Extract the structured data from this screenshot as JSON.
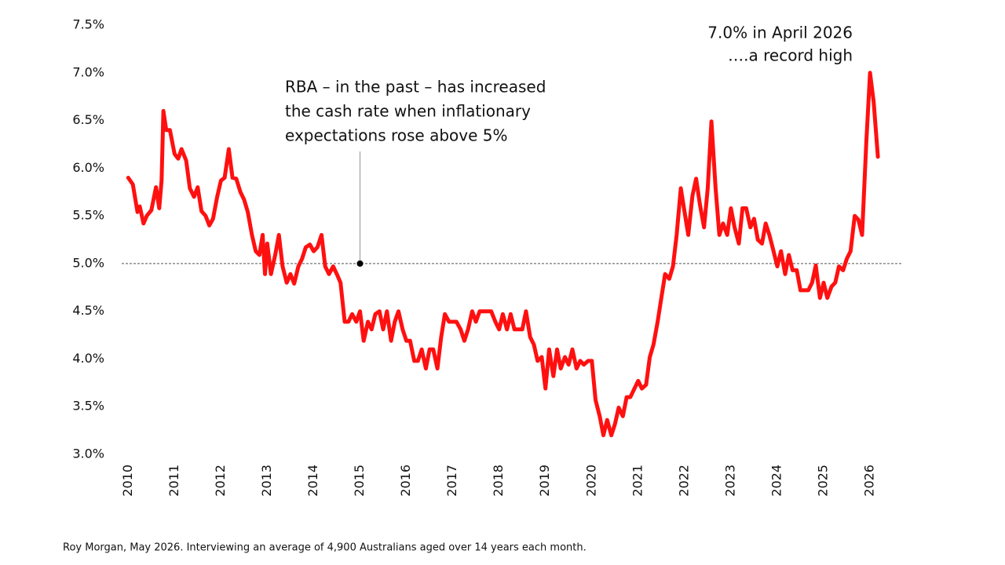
{
  "chart_data": {
    "type": "line",
    "annotation_text": [
      "RBA – in the past – has increased",
      "the cash rate when inflationary",
      "expectations rose above 5%"
    ],
    "annotation_point": {
      "x": 2015,
      "y": 5
    },
    "record_label": "7.0% in April 2026",
    "record_note": "….a record high",
    "source": "Roy Morgan, May 2026.  Interviewing an average of 4,900 Australians aged over 14 years each month.",
    "xlim": [
      2009.86,
      2026.71
    ],
    "xticks": [
      2010,
      2011,
      2012,
      2013,
      2014,
      2015,
      2016,
      2017,
      2018,
      2019,
      2020,
      2021,
      2022,
      2023,
      2024,
      2025,
      2026
    ],
    "ylim": [
      3.0,
      7.5
    ],
    "yticks": [
      {
        "value": 3.0,
        "label": "3.0%"
      },
      {
        "value": 3.5,
        "label": "3.5%"
      },
      {
        "value": 4.0,
        "label": "4.0%"
      },
      {
        "value": 4.5,
        "label": "4.5%"
      },
      {
        "value": 5.0,
        "label": "5.0%"
      },
      {
        "value": 5.5,
        "label": "5.5%"
      },
      {
        "value": 6.0,
        "label": "6.0%"
      },
      {
        "value": 6.5,
        "label": "6.5%"
      },
      {
        "value": 7.0,
        "label": "7.0%"
      },
      {
        "value": 7.5,
        "label": "7.5%"
      }
    ],
    "reference_line": 5,
    "color": "#ff1010",
    "x": [
      2010.0,
      2010.1,
      2010.2,
      2010.25,
      2010.33,
      2010.4,
      2010.5,
      2010.6,
      2010.67,
      2010.72,
      2010.76,
      2010.82,
      2010.9,
      2011.0,
      2011.08,
      2011.15,
      2011.25,
      2011.33,
      2011.42,
      2011.5,
      2011.58,
      2011.67,
      2011.75,
      2011.83,
      2011.92,
      2012.0,
      2012.08,
      2012.17,
      2012.25,
      2012.33,
      2012.42,
      2012.5,
      2012.58,
      2012.67,
      2012.75,
      2012.83,
      2012.9,
      2012.95,
      2013.0,
      2013.08,
      2013.17,
      2013.25,
      2013.33,
      2013.42,
      2013.5,
      2013.58,
      2013.67,
      2013.75,
      2013.83,
      2013.92,
      2014.0,
      2014.08,
      2014.17,
      2014.25,
      2014.33,
      2014.42,
      2014.5,
      2014.58,
      2014.67,
      2014.75,
      2014.83,
      2014.92,
      2015.0,
      2015.08,
      2015.17,
      2015.25,
      2015.33,
      2015.42,
      2015.5,
      2015.58,
      2015.67,
      2015.75,
      2015.83,
      2015.92,
      2016.0,
      2016.08,
      2016.17,
      2016.25,
      2016.33,
      2016.42,
      2016.5,
      2016.58,
      2016.67,
      2016.75,
      2016.83,
      2016.92,
      2017.0,
      2017.08,
      2017.17,
      2017.25,
      2017.33,
      2017.42,
      2017.5,
      2017.58,
      2017.67,
      2017.75,
      2017.83,
      2017.92,
      2018.0,
      2018.08,
      2018.17,
      2018.25,
      2018.33,
      2018.42,
      2018.5,
      2018.58,
      2018.67,
      2018.75,
      2018.83,
      2018.92,
      2019.0,
      2019.08,
      2019.17,
      2019.25,
      2019.33,
      2019.42,
      2019.5,
      2019.58,
      2019.67,
      2019.75,
      2019.83,
      2019.92,
      2020.0,
      2020.08,
      2020.17,
      2020.25,
      2020.33,
      2020.42,
      2020.5,
      2020.58,
      2020.67,
      2020.75,
      2020.83,
      2020.92,
      2021.0,
      2021.08,
      2021.17,
      2021.25,
      2021.33,
      2021.42,
      2021.5,
      2021.58,
      2021.67,
      2021.75,
      2021.83,
      2021.92,
      2022.0,
      2022.08,
      2022.17,
      2022.25,
      2022.33,
      2022.42,
      2022.5,
      2022.58,
      2022.67,
      2022.75,
      2022.83,
      2022.92,
      2023.0,
      2023.08,
      2023.17,
      2023.25,
      2023.33,
      2023.42,
      2023.5,
      2023.58,
      2023.67,
      2023.75,
      2023.83,
      2023.92,
      2024.0,
      2024.08,
      2024.17,
      2024.25,
      2024.33,
      2024.42,
      2024.5,
      2024.58,
      2024.67,
      2024.75,
      2024.83,
      2024.92,
      2025.0,
      2025.08,
      2025.17,
      2025.25,
      2025.33,
      2025.42,
      2025.5,
      2025.58,
      2025.67,
      2025.75,
      2025.83,
      2025.92,
      2026.0,
      2026.08,
      2026.17
    ],
    "values": [
      5.9,
      5.83,
      5.54,
      5.6,
      5.42,
      5.5,
      5.56,
      5.8,
      5.58,
      5.87,
      6.6,
      6.4,
      6.4,
      6.15,
      6.1,
      6.2,
      6.08,
      5.79,
      5.7,
      5.8,
      5.55,
      5.5,
      5.4,
      5.47,
      5.7,
      5.87,
      5.9,
      6.2,
      5.9,
      5.89,
      5.75,
      5.67,
      5.54,
      5.3,
      5.13,
      5.09,
      5.3,
      4.89,
      5.21,
      4.89,
      5.09,
      5.3,
      4.97,
      4.8,
      4.89,
      4.79,
      4.97,
      5.05,
      5.17,
      5.2,
      5.13,
      5.17,
      5.3,
      4.97,
      4.89,
      4.97,
      4.89,
      4.8,
      4.39,
      4.39,
      4.47,
      4.39,
      4.5,
      4.19,
      4.39,
      4.31,
      4.47,
      4.5,
      4.31,
      4.5,
      4.19,
      4.39,
      4.5,
      4.31,
      4.19,
      4.19,
      3.98,
      3.98,
      4.1,
      3.9,
      4.1,
      4.1,
      3.9,
      4.23,
      4.47,
      4.39,
      4.39,
      4.39,
      4.31,
      4.19,
      4.31,
      4.5,
      4.39,
      4.5,
      4.5,
      4.5,
      4.5,
      4.39,
      4.31,
      4.47,
      4.31,
      4.47,
      4.31,
      4.31,
      4.31,
      4.5,
      4.23,
      4.15,
      3.98,
      4.02,
      3.69,
      4.1,
      3.82,
      4.1,
      3.9,
      4.02,
      3.94,
      4.1,
      3.9,
      3.98,
      3.94,
      3.98,
      3.98,
      3.57,
      3.4,
      3.2,
      3.36,
      3.2,
      3.32,
      3.49,
      3.4,
      3.6,
      3.6,
      3.69,
      3.77,
      3.69,
      3.73,
      4.02,
      4.15,
      4.39,
      4.64,
      4.89,
      4.84,
      4.97,
      5.3,
      5.79,
      5.54,
      5.3,
      5.71,
      5.89,
      5.62,
      5.38,
      5.79,
      6.49,
      5.79,
      5.3,
      5.42,
      5.3,
      5.58,
      5.38,
      5.21,
      5.58,
      5.58,
      5.38,
      5.47,
      5.25,
      5.21,
      5.42,
      5.3,
      5.13,
      4.97,
      5.13,
      4.89,
      5.09,
      4.93,
      4.93,
      4.72,
      4.72,
      4.72,
      4.8,
      4.98,
      4.64,
      4.8,
      4.64,
      4.76,
      4.8,
      4.97,
      4.93,
      5.05,
      5.13,
      5.5,
      5.46,
      5.3,
      6.28,
      7.0,
      6.69,
      6.12
    ]
  }
}
